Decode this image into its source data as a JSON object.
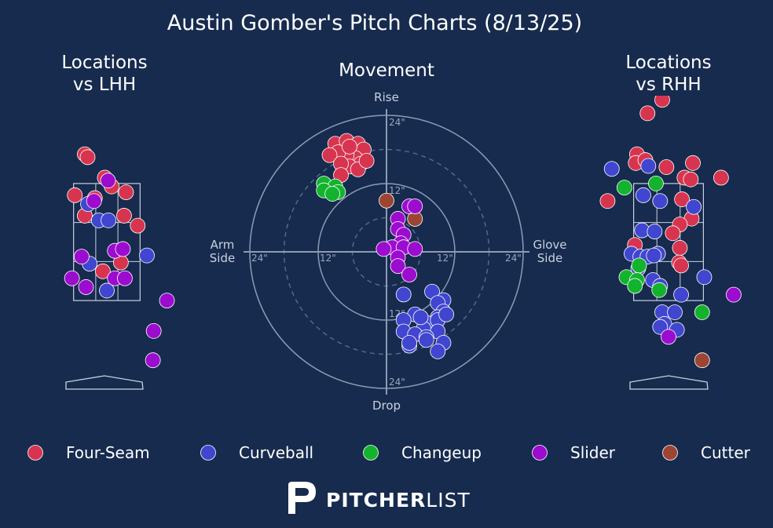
{
  "chart_data": {
    "type": "scatter",
    "title": "Austin Gomber's Pitch Charts (8/13/25)",
    "brand": {
      "bold": "PITCHER",
      "light": "LIST"
    },
    "pitch_colors": {
      "Four-Seam": "#d7354f",
      "Curveball": "#4046cf",
      "Changeup": "#13b32e",
      "Slider": "#9c0ccf",
      "Cutter": "#9c4533"
    },
    "legend": [
      "Four-Seam",
      "Curveball",
      "Changeup",
      "Slider",
      "Cutter"
    ],
    "locations_lhh": {
      "title_line1": "Locations",
      "title_line2": "vs LHH",
      "xlim": [
        -2.0,
        2.0
      ],
      "ylim": [
        0.0,
        5.0
      ],
      "strike_zone": {
        "x": [
          -0.83,
          0.83
        ],
        "y": [
          1.5,
          3.5
        ]
      },
      "pitches": [
        {
          "type": "Four-Seam",
          "x": -0.55,
          "y": 4.0
        },
        {
          "type": "Four-Seam",
          "x": -0.48,
          "y": 3.95
        },
        {
          "type": "Four-Seam",
          "x": -0.05,
          "y": 3.6
        },
        {
          "type": "Four-Seam",
          "x": 0.12,
          "y": 3.45
        },
        {
          "type": "Four-Seam",
          "x": 0.48,
          "y": 3.35
        },
        {
          "type": "Four-Seam",
          "x": -0.8,
          "y": 3.3
        },
        {
          "type": "Four-Seam",
          "x": -0.3,
          "y": 3.25
        },
        {
          "type": "Four-Seam",
          "x": -0.55,
          "y": 2.95
        },
        {
          "type": "Four-Seam",
          "x": 0.43,
          "y": 2.95
        },
        {
          "type": "Four-Seam",
          "x": 0.77,
          "y": 2.78
        },
        {
          "type": "Four-Seam",
          "x": 0.35,
          "y": 2.15
        },
        {
          "type": "Four-Seam",
          "x": -0.1,
          "y": 2.0
        },
        {
          "type": "Curveball",
          "x": -0.47,
          "y": 3.15
        },
        {
          "type": "Curveball",
          "x": -0.2,
          "y": 2.87
        },
        {
          "type": "Curveball",
          "x": 0.04,
          "y": 2.87
        },
        {
          "type": "Curveball",
          "x": 1.0,
          "y": 2.27
        },
        {
          "type": "Curveball",
          "x": -0.43,
          "y": 2.13
        },
        {
          "type": "Curveball",
          "x": 0.0,
          "y": 1.67
        },
        {
          "type": "Slider",
          "x": 0.03,
          "y": 3.55
        },
        {
          "type": "Slider",
          "x": -0.32,
          "y": 3.2
        },
        {
          "type": "Slider",
          "x": 0.2,
          "y": 2.35
        },
        {
          "type": "Slider",
          "x": 0.4,
          "y": 2.38
        },
        {
          "type": "Slider",
          "x": -0.63,
          "y": 2.25
        },
        {
          "type": "Slider",
          "x": -0.87,
          "y": 1.88
        },
        {
          "type": "Slider",
          "x": -0.52,
          "y": 1.73
        },
        {
          "type": "Slider",
          "x": 0.2,
          "y": 1.88
        },
        {
          "type": "Slider",
          "x": 0.45,
          "y": 1.88
        },
        {
          "type": "Slider",
          "x": 1.5,
          "y": 1.5
        },
        {
          "type": "Slider",
          "x": 1.17,
          "y": 0.98
        },
        {
          "type": "Slider",
          "x": 1.15,
          "y": 0.48
        }
      ]
    },
    "movement": {
      "title": "Movement",
      "xlabel_left": [
        "Arm",
        "Side"
      ],
      "xlabel_right": [
        "Glove",
        "Side"
      ],
      "ylabel_top": "Rise",
      "ylabel_bottom": "Drop",
      "ring_labels": [
        "12\"",
        "24\""
      ],
      "xlim": [
        -24,
        24
      ],
      "ylim": [
        -24,
        24
      ],
      "pitches": [
        {
          "type": "Four-Seam",
          "x": -9.0,
          "y": 19.0
        },
        {
          "type": "Four-Seam",
          "x": -7.0,
          "y": 19.5
        },
        {
          "type": "Four-Seam",
          "x": -6.0,
          "y": 18.0
        },
        {
          "type": "Four-Seam",
          "x": -5.0,
          "y": 19.0
        },
        {
          "type": "Four-Seam",
          "x": -4.0,
          "y": 18.0
        },
        {
          "type": "Four-Seam",
          "x": -5.5,
          "y": 16.5
        },
        {
          "type": "Four-Seam",
          "x": -7.0,
          "y": 17.0
        },
        {
          "type": "Four-Seam",
          "x": -8.5,
          "y": 17.5
        },
        {
          "type": "Four-Seam",
          "x": -10.0,
          "y": 17.0
        },
        {
          "type": "Four-Seam",
          "x": -4.5,
          "y": 15.5
        },
        {
          "type": "Four-Seam",
          "x": -6.5,
          "y": 15.0
        },
        {
          "type": "Four-Seam",
          "x": -8.0,
          "y": 15.5
        },
        {
          "type": "Four-Seam",
          "x": -5.0,
          "y": 14.5
        },
        {
          "type": "Four-Seam",
          "x": -8.0,
          "y": 13.5
        },
        {
          "type": "Four-Seam",
          "x": -3.5,
          "y": 16.0
        },
        {
          "type": "Four-Seam",
          "x": -6.5,
          "y": 18.5
        },
        {
          "type": "Changeup",
          "x": -11.0,
          "y": 12.0
        },
        {
          "type": "Changeup",
          "x": -9.0,
          "y": 11.5
        },
        {
          "type": "Changeup",
          "x": -8.5,
          "y": 10.5
        },
        {
          "type": "Changeup",
          "x": -11.0,
          "y": 10.8
        },
        {
          "type": "Changeup",
          "x": -9.5,
          "y": 10.2
        },
        {
          "type": "Cutter",
          "x": 0.0,
          "y": 9.0
        },
        {
          "type": "Cutter",
          "x": 5.0,
          "y": 5.8
        },
        {
          "type": "Slider",
          "x": 4.0,
          "y": 8.0
        },
        {
          "type": "Slider",
          "x": 5.0,
          "y": 8.0
        },
        {
          "type": "Slider",
          "x": 2.0,
          "y": 5.8
        },
        {
          "type": "Slider",
          "x": 2.0,
          "y": 4.0
        },
        {
          "type": "Slider",
          "x": 3.0,
          "y": 3.0
        },
        {
          "type": "Slider",
          "x": 2.5,
          "y": 1.5
        },
        {
          "type": "Slider",
          "x": 1.0,
          "y": 0.8
        },
        {
          "type": "Slider",
          "x": 3.0,
          "y": 0.8
        },
        {
          "type": "Slider",
          "x": 5.0,
          "y": 0.5
        },
        {
          "type": "Slider",
          "x": -0.5,
          "y": 0.5
        },
        {
          "type": "Slider",
          "x": 2.0,
          "y": -1.0
        },
        {
          "type": "Slider",
          "x": 2.0,
          "y": -2.5
        },
        {
          "type": "Slider",
          "x": 4.0,
          "y": -4.0
        },
        {
          "type": "Curveball",
          "x": 3.0,
          "y": -7.5
        },
        {
          "type": "Curveball",
          "x": 8.0,
          "y": -7.0
        },
        {
          "type": "Curveball",
          "x": 10.0,
          "y": -8.5
        },
        {
          "type": "Curveball",
          "x": 9.0,
          "y": -9.0
        },
        {
          "type": "Curveball",
          "x": 10.0,
          "y": -10.5
        },
        {
          "type": "Curveball",
          "x": 5.0,
          "y": -11.0
        },
        {
          "type": "Curveball",
          "x": 9.0,
          "y": -11.5
        },
        {
          "type": "Curveball",
          "x": 3.0,
          "y": -12.0
        },
        {
          "type": "Curveball",
          "x": 7.0,
          "y": -12.5
        },
        {
          "type": "Curveball",
          "x": 9.0,
          "y": -12.0
        },
        {
          "type": "Curveball",
          "x": 6.5,
          "y": -13.5
        },
        {
          "type": "Curveball",
          "x": 3.0,
          "y": -14.0
        },
        {
          "type": "Curveball",
          "x": 9.0,
          "y": -14.0
        },
        {
          "type": "Curveball",
          "x": 5.0,
          "y": -14.5
        },
        {
          "type": "Curveball",
          "x": 7.0,
          "y": -15.0
        },
        {
          "type": "Curveball",
          "x": 7.0,
          "y": -15.5
        },
        {
          "type": "Curveball",
          "x": 4.0,
          "y": -16.5
        },
        {
          "type": "Curveball",
          "x": 10.0,
          "y": -16.0
        },
        {
          "type": "Curveball",
          "x": 4.0,
          "y": -16.0
        },
        {
          "type": "Curveball",
          "x": 9.0,
          "y": -17.5
        },
        {
          "type": "Curveball",
          "x": 6.0,
          "y": -11.5
        },
        {
          "type": "Curveball",
          "x": 10.5,
          "y": -11.0
        }
      ]
    },
    "locations_rhh": {
      "title_line1": "Locations",
      "title_line2": "vs RHH",
      "xlim": [
        -2.0,
        2.0
      ],
      "ylim": [
        0.0,
        5.0
      ],
      "strike_zone": {
        "x": [
          -0.83,
          0.83
        ],
        "y": [
          1.5,
          3.5
        ]
      },
      "pitches": [
        {
          "type": "Four-Seam",
          "x": -0.5,
          "y": 4.7
        },
        {
          "type": "Four-Seam",
          "x": -0.15,
          "y": 4.93
        },
        {
          "type": "Four-Seam",
          "x": -0.75,
          "y": 4.0
        },
        {
          "type": "Four-Seam",
          "x": -0.78,
          "y": 3.85
        },
        {
          "type": "Four-Seam",
          "x": -0.55,
          "y": 3.9
        },
        {
          "type": "Four-Seam",
          "x": -0.05,
          "y": 3.78
        },
        {
          "type": "Four-Seam",
          "x": 0.58,
          "y": 3.85
        },
        {
          "type": "Four-Seam",
          "x": 0.38,
          "y": 3.6
        },
        {
          "type": "Four-Seam",
          "x": 0.53,
          "y": 3.57
        },
        {
          "type": "Four-Seam",
          "x": 1.25,
          "y": 3.6
        },
        {
          "type": "Four-Seam",
          "x": -1.45,
          "y": 3.2
        },
        {
          "type": "Four-Seam",
          "x": 0.32,
          "y": 3.23
        },
        {
          "type": "Four-Seam",
          "x": 0.55,
          "y": 2.9
        },
        {
          "type": "Four-Seam",
          "x": 0.27,
          "y": 2.8
        },
        {
          "type": "Four-Seam",
          "x": 0.1,
          "y": 2.65
        },
        {
          "type": "Four-Seam",
          "x": -0.8,
          "y": 2.45
        },
        {
          "type": "Four-Seam",
          "x": 0.27,
          "y": 2.4
        },
        {
          "type": "Four-Seam",
          "x": 0.25,
          "y": 2.15
        },
        {
          "type": "Four-Seam",
          "x": 0.3,
          "y": 2.1
        },
        {
          "type": "Curveball",
          "x": -1.35,
          "y": 3.75
        },
        {
          "type": "Curveball",
          "x": -0.48,
          "y": 3.8
        },
        {
          "type": "Curveball",
          "x": -0.6,
          "y": 3.3
        },
        {
          "type": "Curveball",
          "x": -0.2,
          "y": 3.2
        },
        {
          "type": "Curveball",
          "x": 0.6,
          "y": 3.1
        },
        {
          "type": "Curveball",
          "x": -0.63,
          "y": 2.7
        },
        {
          "type": "Curveball",
          "x": -0.33,
          "y": 2.68
        },
        {
          "type": "Curveball",
          "x": -0.25,
          "y": 2.3
        },
        {
          "type": "Curveball",
          "x": -0.88,
          "y": 2.3
        },
        {
          "type": "Curveball",
          "x": -0.67,
          "y": 2.25
        },
        {
          "type": "Curveball",
          "x": -0.5,
          "y": 2.25
        },
        {
          "type": "Curveball",
          "x": -0.35,
          "y": 2.27
        },
        {
          "type": "Curveball",
          "x": -0.72,
          "y": 2.05
        },
        {
          "type": "Curveball",
          "x": -0.37,
          "y": 1.85
        },
        {
          "type": "Curveball",
          "x": -0.2,
          "y": 1.75
        },
        {
          "type": "Curveball",
          "x": 0.85,
          "y": 1.9
        },
        {
          "type": "Curveball",
          "x": 0.3,
          "y": 1.6
        },
        {
          "type": "Curveball",
          "x": -0.15,
          "y": 1.3
        },
        {
          "type": "Curveball",
          "x": 0.15,
          "y": 1.3
        },
        {
          "type": "Curveball",
          "x": -0.1,
          "y": 1.1
        },
        {
          "type": "Curveball",
          "x": -0.2,
          "y": 1.05
        },
        {
          "type": "Curveball",
          "x": 0.2,
          "y": 1.0
        },
        {
          "type": "Changeup",
          "x": -1.05,
          "y": 3.43
        },
        {
          "type": "Changeup",
          "x": -0.3,
          "y": 3.5
        },
        {
          "type": "Changeup",
          "x": -0.7,
          "y": 2.1
        },
        {
          "type": "Changeup",
          "x": -1.0,
          "y": 1.9
        },
        {
          "type": "Changeup",
          "x": -0.75,
          "y": 1.85
        },
        {
          "type": "Changeup",
          "x": -0.8,
          "y": 1.75
        },
        {
          "type": "Changeup",
          "x": -0.22,
          "y": 1.68
        },
        {
          "type": "Changeup",
          "x": 0.8,
          "y": 1.3
        },
        {
          "type": "Slider",
          "x": -0.0,
          "y": 0.88
        },
        {
          "type": "Slider",
          "x": 1.55,
          "y": 1.6
        },
        {
          "type": "Cutter",
          "x": 0.8,
          "y": 0.48
        }
      ]
    }
  }
}
